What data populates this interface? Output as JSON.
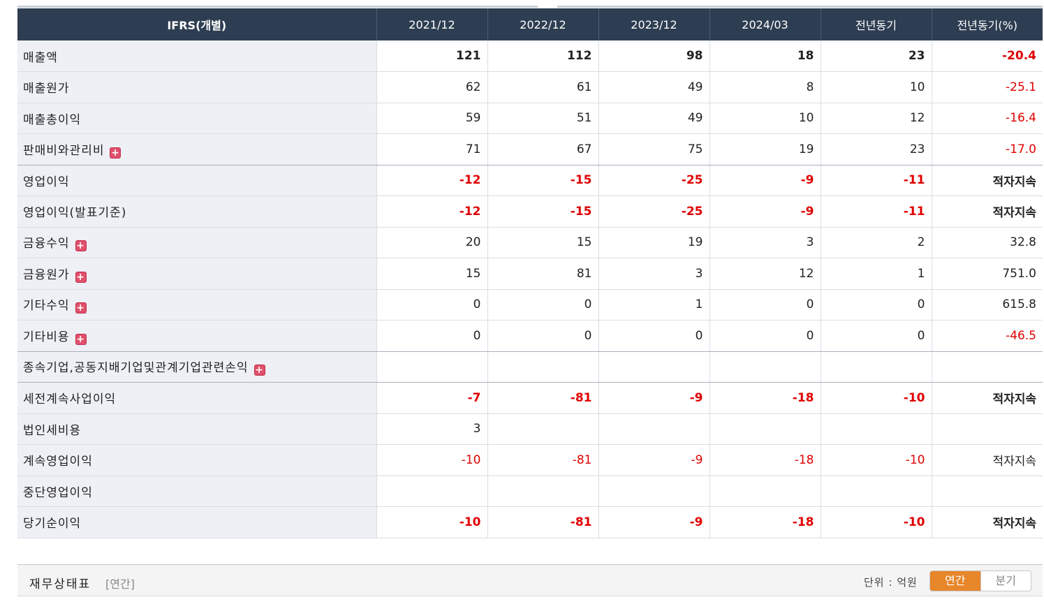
{
  "table": {
    "header": [
      "IFRS(개별)",
      "2021/12",
      "2022/12",
      "2023/12",
      "2024/03",
      "전년동기",
      "전년동기(%)"
    ],
    "rows": [
      {
        "label": "매출액",
        "values": [
          "121",
          "112",
          "98",
          "18",
          "23",
          "-20.4"
        ],
        "bold": true,
        "expandable": false
      },
      {
        "label": "매출원가",
        "values": [
          "62",
          "61",
          "49",
          "8",
          "10",
          "-25.1"
        ],
        "bold": false,
        "expandable": false
      },
      {
        "label": "매출총이익",
        "values": [
          "59",
          "51",
          "49",
          "10",
          "12",
          "-16.4"
        ],
        "bold": false,
        "expandable": false
      },
      {
        "label": "판매비와관리비",
        "values": [
          "71",
          "67",
          "75",
          "19",
          "23",
          "-17.0"
        ],
        "bold": false,
        "expandable": true
      },
      {
        "label": "영업이익",
        "values": [
          "-12",
          "-15",
          "-25",
          "-9",
          "-11",
          "적자지속"
        ],
        "bold": true,
        "expandable": false
      },
      {
        "label": "영업이익(발표기준)",
        "values": [
          "-12",
          "-15",
          "-25",
          "-9",
          "-11",
          "적자지속"
        ],
        "bold": true,
        "expandable": false
      },
      {
        "label": "금융수익",
        "values": [
          "20",
          "15",
          "19",
          "3",
          "2",
          "32.8"
        ],
        "bold": false,
        "expandable": true
      },
      {
        "label": "금융원가",
        "values": [
          "15",
          "81",
          "3",
          "12",
          "1",
          "751.0"
        ],
        "bold": false,
        "expandable": true
      },
      {
        "label": "기타수익",
        "values": [
          "0",
          "0",
          "1",
          "0",
          "0",
          "615.8"
        ],
        "bold": false,
        "expandable": true
      },
      {
        "label": "기타비용",
        "values": [
          "0",
          "0",
          "0",
          "0",
          "0",
          "-46.5"
        ],
        "bold": false,
        "expandable": true
      },
      {
        "label": "종속기업,공동지배기업및관계기업관련손익",
        "values": [
          "",
          "",
          "",
          "",
          "",
          ""
        ],
        "bold": false,
        "expandable": true
      },
      {
        "label": "세전계속사업이익",
        "values": [
          "-7",
          "-81",
          "-9",
          "-18",
          "-10",
          "적자지속"
        ],
        "bold": true,
        "expandable": false
      },
      {
        "label": "법인세비용",
        "values": [
          "3",
          "",
          "",
          "",
          "",
          ""
        ],
        "bold": false,
        "expandable": false
      },
      {
        "label": "계속영업이익",
        "values": [
          "-10",
          "-81",
          "-9",
          "-18",
          "-10",
          "적자지속"
        ],
        "bold": false,
        "expandable": false
      },
      {
        "label": "중단영업이익",
        "values": [
          "",
          "",
          "",
          "",
          "",
          ""
        ],
        "bold": false,
        "expandable": false
      },
      {
        "label": "당기순이익",
        "values": [
          "-10",
          "-81",
          "-9",
          "-18",
          "-10",
          "적자지속"
        ],
        "bold": true,
        "expandable": false
      }
    ],
    "expand_icon": "plus-box-icon",
    "negative_color": "#e00000",
    "header_bg": "#2e3e52"
  },
  "footer": {
    "title": "재무상태표",
    "subtitle": "[연간]",
    "unit": "단위 : 억원",
    "toggle_annual": "연간",
    "toggle_quarter": "분기",
    "active_color": "#e8862a"
  }
}
